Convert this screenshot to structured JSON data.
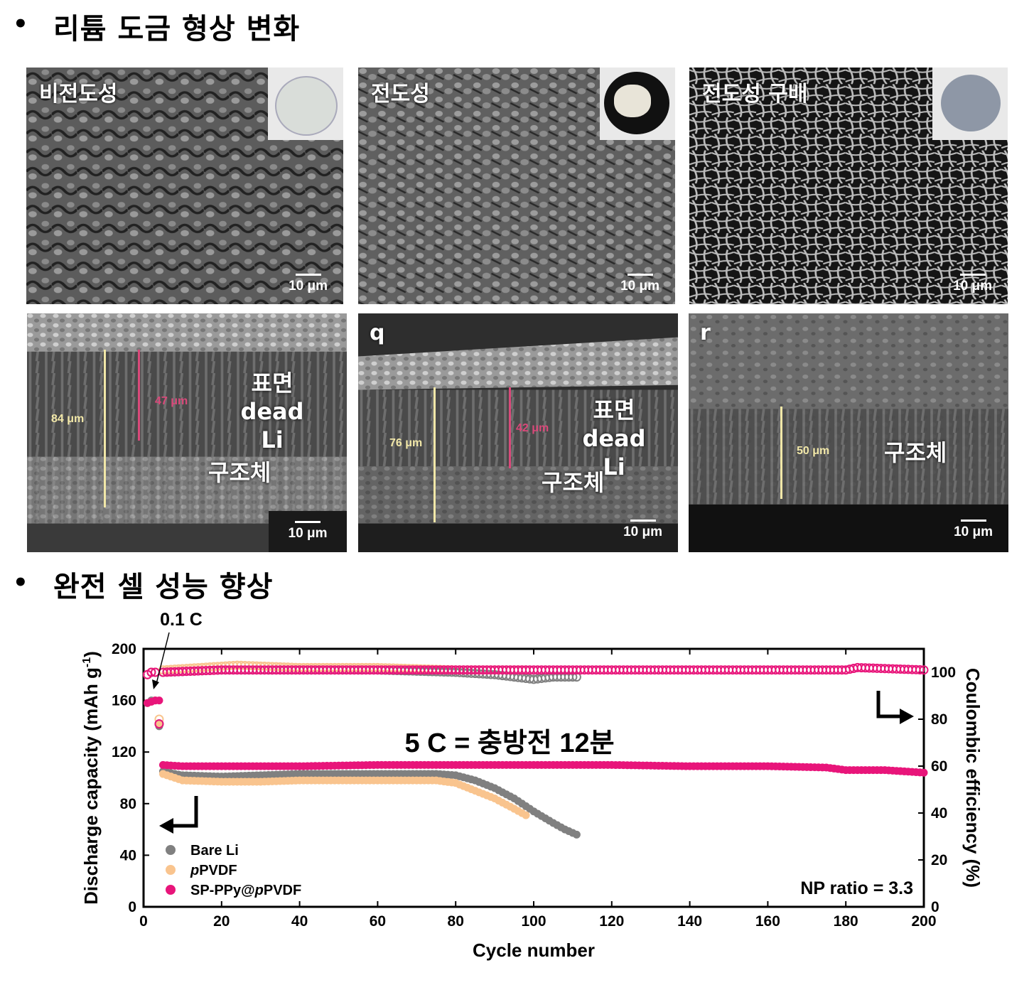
{
  "sections": {
    "bullet": "•",
    "title1": "리튬 도금 형상 변화",
    "title2": "완전 셀 성능 향상"
  },
  "panels": {
    "top": [
      {
        "label": "비전도성",
        "scale": "10 μm",
        "inset_color": "#d9ddd9"
      },
      {
        "label": "전도성",
        "scale": "10 μm",
        "inset_color": "#111111"
      },
      {
        "label": "전도성 구배",
        "scale": "10 μm",
        "inset_color": "#8e97a6"
      }
    ],
    "bottom": [
      {
        "label": "",
        "scale": "10 μm",
        "total": "84 μm",
        "dead": "47 μm",
        "surface_text": "표면",
        "dead_text": "dead Li",
        "structure_text": "구조체"
      },
      {
        "label": "q",
        "scale": "10 μm",
        "total": "76 μm",
        "dead": "42 μm",
        "surface_text": "표면",
        "dead_text": "dead Li",
        "structure_text": "구조체"
      },
      {
        "label": "r",
        "scale": "10 μm",
        "total": "50 μm",
        "structure_text": "구조체"
      }
    ]
  },
  "chart_data": {
    "type": "scatter",
    "xlabel": "Cycle number",
    "ylabel": "Discharge capacity (mAh g",
    "ylabel_sup": "-1",
    "ylabel_close": ")",
    "y2label": "Coulombic efficiency (%)",
    "xlim": [
      0,
      200
    ],
    "ylim": [
      0,
      200
    ],
    "y2lim": [
      0,
      110
    ],
    "xticks": [
      "0",
      "20",
      "40",
      "60",
      "80",
      "100",
      "120",
      "140",
      "160",
      "180",
      "200"
    ],
    "yticks": [
      "0",
      "40",
      "80",
      "120",
      "160",
      "200"
    ],
    "y2ticks": [
      "0",
      "20",
      "40",
      "60",
      "80",
      "100"
    ],
    "annotation_rate_low": "0.1 C",
    "annotation_rate_high": "5 C = 충방전 12분",
    "annotation_np": "NP ratio = 3.3",
    "legend": [
      {
        "name": "Bare Li",
        "color": "#808080",
        "prefix": "",
        "italic": "",
        "rest": "Bare Li"
      },
      {
        "name": "pPVDF",
        "color": "#f9c48e",
        "prefix": "",
        "italic": "p",
        "rest": "PVDF"
      },
      {
        "name": "SP-PPy@pPVDF",
        "color": "#e8157a",
        "prefix": "SP-PPy@",
        "italic": "p",
        "rest": "PVDF"
      }
    ],
    "capacity_series": [
      {
        "name": "Bare Li",
        "color": "#808080",
        "points": [
          [
            1,
            158
          ],
          [
            2,
            160
          ],
          [
            3,
            160
          ],
          [
            4,
            140
          ],
          [
            5,
            105
          ],
          [
            8,
            103
          ],
          [
            10,
            102
          ],
          [
            20,
            101
          ],
          [
            30,
            102
          ],
          [
            40,
            103
          ],
          [
            50,
            103
          ],
          [
            60,
            103
          ],
          [
            70,
            103
          ],
          [
            75,
            103
          ],
          [
            80,
            102
          ],
          [
            85,
            98
          ],
          [
            90,
            92
          ],
          [
            95,
            84
          ],
          [
            100,
            74
          ],
          [
            105,
            65
          ],
          [
            108,
            60
          ],
          [
            111,
            56
          ]
        ]
      },
      {
        "name": "pPVDF",
        "color": "#f9c48e",
        "points": [
          [
            1,
            158
          ],
          [
            2,
            159
          ],
          [
            3,
            160
          ],
          [
            4,
            142
          ],
          [
            5,
            103
          ],
          [
            8,
            100
          ],
          [
            10,
            98
          ],
          [
            20,
            97
          ],
          [
            30,
            97
          ],
          [
            40,
            98
          ],
          [
            50,
            98
          ],
          [
            60,
            98
          ],
          [
            70,
            98
          ],
          [
            75,
            98
          ],
          [
            80,
            96
          ],
          [
            85,
            90
          ],
          [
            90,
            84
          ],
          [
            95,
            76
          ],
          [
            98,
            71
          ]
        ]
      },
      {
        "name": "SP-PPy@pPVDF",
        "color": "#e8157a",
        "points": [
          [
            1,
            158
          ],
          [
            2,
            159
          ],
          [
            3,
            160
          ],
          [
            4,
            160
          ],
          [
            5,
            110
          ],
          [
            10,
            109
          ],
          [
            20,
            109
          ],
          [
            40,
            109
          ],
          [
            60,
            110
          ],
          [
            80,
            110
          ],
          [
            100,
            110
          ],
          [
            120,
            110
          ],
          [
            140,
            109
          ],
          [
            160,
            109
          ],
          [
            175,
            108
          ],
          [
            180,
            106
          ],
          [
            190,
            106
          ],
          [
            200,
            104
          ]
        ]
      }
    ],
    "ce_series": [
      {
        "name": "Bare Li",
        "color": "#808080",
        "points": [
          [
            1,
            99
          ],
          [
            2,
            100
          ],
          [
            3,
            100
          ],
          [
            4,
            78
          ],
          [
            5,
            100
          ],
          [
            20,
            101
          ],
          [
            40,
            101
          ],
          [
            60,
            101
          ],
          [
            80,
            100
          ],
          [
            90,
            99
          ],
          [
            95,
            98
          ],
          [
            100,
            97
          ],
          [
            105,
            98
          ],
          [
            111,
            98
          ]
        ]
      },
      {
        "name": "pPVDF",
        "color": "#f9c48e",
        "points": [
          [
            1,
            99
          ],
          [
            2,
            100
          ],
          [
            3,
            100
          ],
          [
            4,
            80
          ],
          [
            5,
            101
          ],
          [
            24,
            103
          ],
          [
            40,
            102
          ],
          [
            60,
            102
          ],
          [
            80,
            101
          ],
          [
            98,
            101
          ]
        ]
      },
      {
        "name": "SP-PPy@pPVDF",
        "color": "#e8157a",
        "points": [
          [
            1,
            99
          ],
          [
            2,
            100
          ],
          [
            3,
            100
          ],
          [
            4,
            78
          ],
          [
            5,
            100
          ],
          [
            20,
            101
          ],
          [
            60,
            101
          ],
          [
            100,
            101
          ],
          [
            140,
            101
          ],
          [
            180,
            101
          ],
          [
            183,
            102
          ],
          [
            200,
            101
          ]
        ]
      }
    ]
  }
}
